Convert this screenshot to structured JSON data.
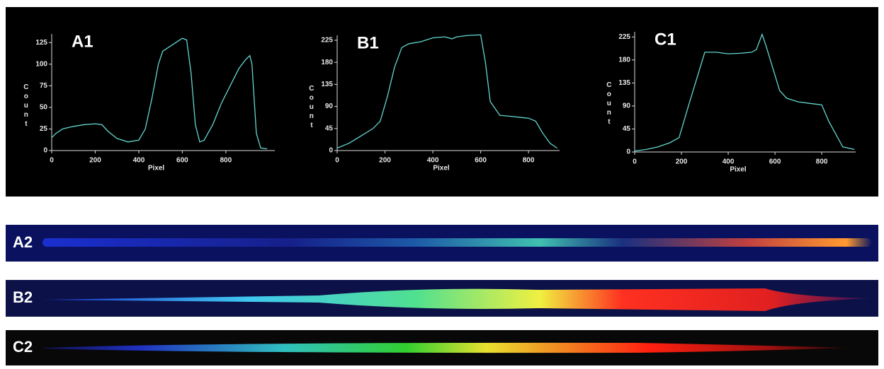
{
  "chart_data": [
    {
      "type": "line",
      "title": "A1",
      "xlabel": "Pixel",
      "ylabel": "Count",
      "color": "#62d6cf",
      "x": [
        0,
        20,
        50,
        100,
        150,
        200,
        230,
        260,
        300,
        350,
        400,
        430,
        460,
        490,
        510,
        540,
        570,
        600,
        620,
        640,
        660,
        680,
        700,
        740,
        780,
        820,
        860,
        890,
        910,
        920,
        940,
        960,
        990
      ],
      "values": [
        15,
        20,
        25,
        28,
        30,
        31,
        30,
        22,
        14,
        10,
        12,
        25,
        60,
        100,
        115,
        120,
        125,
        130,
        128,
        90,
        30,
        10,
        12,
        30,
        55,
        75,
        95,
        105,
        110,
        100,
        20,
        3,
        2
      ],
      "xlim": [
        0,
        1025
      ],
      "ylim": [
        0,
        135
      ],
      "xticks": [
        0,
        200,
        400,
        600,
        800
      ],
      "yticks": [
        0,
        25,
        50,
        75,
        100,
        125
      ]
    },
    {
      "type": "line",
      "title": "B1",
      "xlabel": "Pixel",
      "ylabel": "Count",
      "color": "#62d6cf",
      "x": [
        0,
        50,
        100,
        150,
        180,
        210,
        240,
        270,
        300,
        350,
        400,
        450,
        480,
        500,
        550,
        600,
        620,
        640,
        680,
        720,
        760,
        800,
        830,
        860,
        890,
        920
      ],
      "values": [
        5,
        15,
        30,
        45,
        60,
        110,
        170,
        210,
        218,
        222,
        230,
        232,
        228,
        232,
        235,
        236,
        180,
        100,
        72,
        70,
        68,
        66,
        60,
        35,
        15,
        5
      ],
      "xlim": [
        0,
        930
      ],
      "ylim": [
        0,
        235
      ],
      "xticks": [
        0,
        200,
        400,
        600,
        800
      ],
      "yticks": [
        0,
        45,
        90,
        135,
        180,
        225
      ]
    },
    {
      "type": "line",
      "title": "C1",
      "xlabel": "Pixel",
      "ylabel": "Count",
      "color": "#62d6cf",
      "x": [
        0,
        50,
        100,
        150,
        190,
        230,
        270,
        300,
        350,
        400,
        450,
        500,
        520,
        545,
        560,
        580,
        600,
        620,
        650,
        700,
        750,
        800,
        830,
        860,
        890,
        940
      ],
      "values": [
        2,
        5,
        10,
        18,
        28,
        90,
        150,
        195,
        195,
        192,
        193,
        195,
        200,
        230,
        210,
        180,
        150,
        120,
        105,
        98,
        95,
        92,
        60,
        35,
        10,
        5
      ],
      "xlim": [
        0,
        945
      ],
      "ylim": [
        0,
        235
      ],
      "xticks": [
        0,
        200,
        400,
        600,
        800
      ],
      "yticks": [
        0,
        45,
        90,
        135,
        180,
        225
      ]
    }
  ],
  "spectra": [
    {
      "label": "A2"
    },
    {
      "label": "B2"
    },
    {
      "label": "C2"
    }
  ]
}
